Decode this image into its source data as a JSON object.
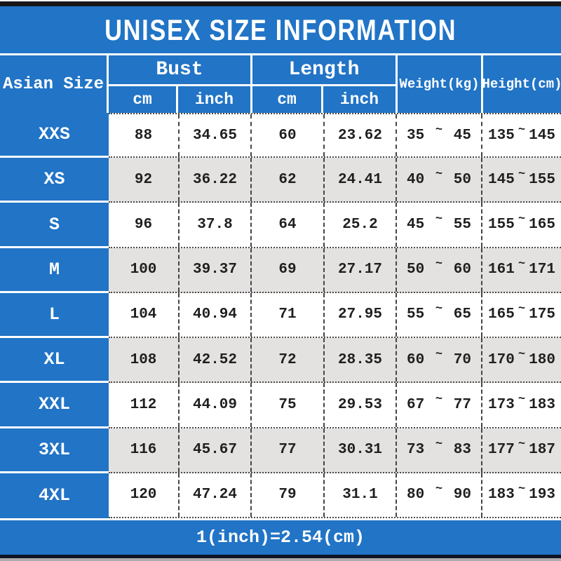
{
  "title": "UNISEX SIZE INFORMATION",
  "footer_note": "1(inch)=2.54(cm)",
  "tilde": "~",
  "header": {
    "size": "Asian Size",
    "bust": "Bust",
    "length": "Length",
    "cm": "cm",
    "inch": "inch",
    "weight": "Weight(kg)",
    "height": "Height(cm)"
  },
  "chart_data": {
    "type": "table",
    "title": "UNISEX SIZE INFORMATION",
    "columns": [
      "Asian Size",
      "Bust cm",
      "Bust inch",
      "Length cm",
      "Length inch",
      "Weight(kg) min",
      "Weight(kg) max",
      "Height(cm) min",
      "Height(cm) max"
    ],
    "rows": [
      {
        "size": "XXS",
        "bust_cm": "88",
        "bust_inch": "34.65",
        "length_cm": "60",
        "length_inch": "23.62",
        "weight_min": "35",
        "weight_max": "45",
        "height_min": "135",
        "height_max": "145"
      },
      {
        "size": "XS",
        "bust_cm": "92",
        "bust_inch": "36.22",
        "length_cm": "62",
        "length_inch": "24.41",
        "weight_min": "40",
        "weight_max": "50",
        "height_min": "145",
        "height_max": "155"
      },
      {
        "size": "S",
        "bust_cm": "96",
        "bust_inch": "37.8",
        "length_cm": "64",
        "length_inch": "25.2",
        "weight_min": "45",
        "weight_max": "55",
        "height_min": "155",
        "height_max": "165"
      },
      {
        "size": "M",
        "bust_cm": "100",
        "bust_inch": "39.37",
        "length_cm": "69",
        "length_inch": "27.17",
        "weight_min": "50",
        "weight_max": "60",
        "height_min": "161",
        "height_max": "171"
      },
      {
        "size": "L",
        "bust_cm": "104",
        "bust_inch": "40.94",
        "length_cm": "71",
        "length_inch": "27.95",
        "weight_min": "55",
        "weight_max": "65",
        "height_min": "165",
        "height_max": "175"
      },
      {
        "size": "XL",
        "bust_cm": "108",
        "bust_inch": "42.52",
        "length_cm": "72",
        "length_inch": "28.35",
        "weight_min": "60",
        "weight_max": "70",
        "height_min": "170",
        "height_max": "180"
      },
      {
        "size": "XXL",
        "bust_cm": "112",
        "bust_inch": "44.09",
        "length_cm": "75",
        "length_inch": "29.53",
        "weight_min": "67",
        "weight_max": "77",
        "height_min": "173",
        "height_max": "183"
      },
      {
        "size": "3XL",
        "bust_cm": "116",
        "bust_inch": "45.67",
        "length_cm": "77",
        "length_inch": "30.31",
        "weight_min": "73",
        "weight_max": "83",
        "height_min": "177",
        "height_max": "187"
      },
      {
        "size": "4XL",
        "bust_cm": "120",
        "bust_inch": "47.24",
        "length_cm": "79",
        "length_inch": "31.1",
        "weight_min": "80",
        "weight_max": "90",
        "height_min": "183",
        "height_max": "193"
      }
    ]
  },
  "colors": {
    "blue": "#2174c6",
    "row_alt": "#e4e2e1",
    "top_bar": "#171717",
    "bottom_bar": "#0f1526",
    "bottom_gray": "#ababab"
  }
}
